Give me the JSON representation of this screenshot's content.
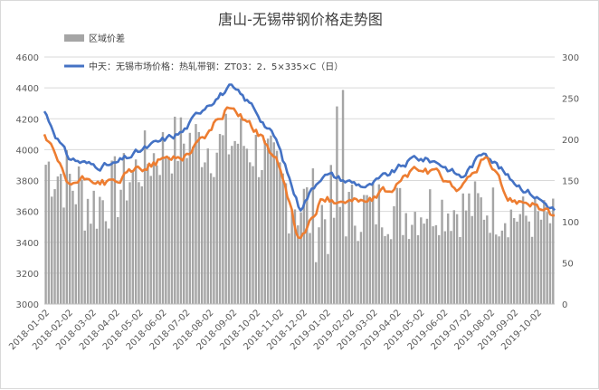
{
  "chart_data": {
    "type": "bar+line",
    "title": "唐山-无锡带钢价格走势图",
    "x_ticks": [
      "2018-01-02",
      "2018-02-02",
      "2018-03-02",
      "2018-04-02",
      "2018-05-02",
      "2018-06-02",
      "2018-07-02",
      "2018-08-02",
      "2018-09-02",
      "2018-10-02",
      "2018-11-02",
      "2018-12-02",
      "2019-01-02",
      "2019-02-02",
      "2019-03-02",
      "2019-04-02",
      "2019-05-02",
      "2019-06-02",
      "2019-07-02",
      "2019-08-02",
      "2019-09-02",
      "2019-10-02"
    ],
    "y_left": {
      "min": 3000,
      "max": 4600,
      "ticks": [
        3000,
        3200,
        3400,
        3600,
        3800,
        4000,
        4200,
        4400,
        4600
      ]
    },
    "y_right": {
      "min": 0,
      "max": 300,
      "ticks": [
        0,
        50,
        100,
        150,
        200,
        250,
        300
      ]
    },
    "grid": true,
    "legend_position": "top-left",
    "series": [
      {
        "name": "区域价差",
        "kind": "bar",
        "axis": "right",
        "color": "#a5a5a5",
        "monthly_levels": [
          170,
          150,
          120,
          140,
          170,
          190,
          200,
          190,
          200,
          180,
          140,
          110,
          110,
          115,
          120,
          110,
          120,
          115,
          120,
          110,
          105,
          100
        ],
        "monthly_amplitude": [
          45,
          50,
          45,
          40,
          40,
          40,
          40,
          40,
          40,
          40,
          55,
          60,
          40,
          40,
          40,
          35,
          35,
          35,
          35,
          30,
          30,
          30
        ]
      },
      {
        "name": "中天：无锡市场价格：热轧带钢：ZT03：2．5×335×C（日）",
        "kind": "line",
        "axis": "left",
        "color": "#4472c4",
        "monthly_values": [
          4250,
          3950,
          3900,
          3900,
          3980,
          4050,
          4120,
          4300,
          4400,
          4280,
          4060,
          3620,
          3850,
          3800,
          3760,
          3850,
          3950,
          3920,
          3820,
          4000,
          3820,
          3720,
          3610
        ]
      },
      {
        "name": "",
        "kind": "line",
        "axis": "left",
        "color": "#ed7d31",
        "monthly_values": [
          4100,
          3770,
          3810,
          3780,
          3870,
          3930,
          3960,
          4100,
          4290,
          4150,
          3940,
          3400,
          3680,
          3680,
          3660,
          3750,
          3880,
          3830,
          3740,
          3960,
          3680,
          3670,
          3560
        ]
      }
    ]
  }
}
